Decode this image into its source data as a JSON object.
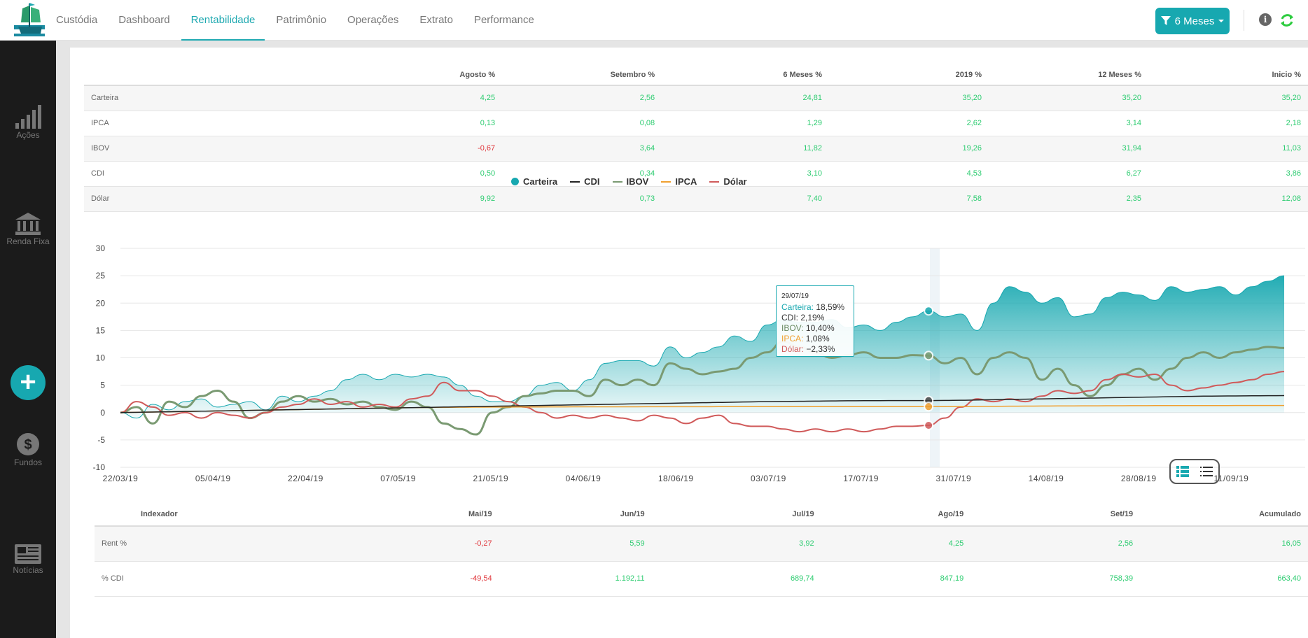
{
  "nav": {
    "items": [
      "Custódia",
      "Dashboard",
      "Rentabilidade",
      "Patrimônio",
      "Operações",
      "Extrato",
      "Performance"
    ],
    "active": "Rentabilidade"
  },
  "filter": {
    "label": "6 Meses"
  },
  "sidebar": {
    "items": [
      {
        "label": "Ações",
        "icon": "bar-chart-icon"
      },
      {
        "label": "Renda Fixa",
        "icon": "bank-icon"
      },
      {
        "label": "Fundos",
        "icon": "money-bag-icon"
      },
      {
        "label": "Notícias",
        "icon": "newspaper-icon"
      }
    ],
    "add_label": "+"
  },
  "returns_table": {
    "headers": [
      "",
      "Agosto %",
      "Setembro %",
      "6 Meses %",
      "2019 %",
      "12 Meses %",
      "Inicio %"
    ],
    "rows": [
      {
        "label": "Carteira",
        "values": [
          "4,25",
          "2,56",
          "24,81",
          "35,20",
          "35,20",
          "35,20"
        ]
      },
      {
        "label": "IPCA",
        "values": [
          "0,13",
          "0,08",
          "1,29",
          "2,62",
          "3,14",
          "2,18"
        ]
      },
      {
        "label": "IBOV",
        "values": [
          "-0,67",
          "3,64",
          "11,82",
          "19,26",
          "31,94",
          "11,03"
        ]
      },
      {
        "label": "CDI",
        "values": [
          "0,50",
          "0,34",
          "3,10",
          "4,53",
          "6,27",
          "3,86"
        ]
      },
      {
        "label": "Dólar",
        "values": [
          "9,92",
          "0,73",
          "7,40",
          "7,58",
          "2,35",
          "12,08"
        ]
      }
    ]
  },
  "colors": {
    "carteira": "#17a8b0",
    "cdi": "#222222",
    "ibov": "#7a9a72",
    "ipca": "#f0a030",
    "dolar": "#d05a5a",
    "positive": "#2ecc71",
    "negative": "#e0363b"
  },
  "chart_data": {
    "type": "area",
    "x_labels": [
      "22/03/19",
      "05/04/19",
      "22/04/19",
      "07/05/19",
      "21/05/19",
      "04/06/19",
      "18/06/19",
      "03/07/19",
      "17/07/19",
      "31/07/19",
      "14/08/19",
      "28/08/19",
      "11/09/19"
    ],
    "ylim": [
      -10,
      30
    ],
    "yticks": [
      30,
      25,
      20,
      15,
      10,
      5,
      0,
      -5,
      -10
    ],
    "grid": true,
    "legend_position": "top-center",
    "series": [
      {
        "name": "Carteira",
        "type": "area",
        "values": [
          0,
          -1,
          1.5,
          0.5,
          2,
          2.5,
          1,
          1.5,
          2,
          0.5,
          3,
          2,
          3,
          4,
          6,
          7,
          6,
          7,
          6.5,
          7,
          6.5,
          5,
          3,
          2,
          2,
          3,
          5,
          5.5,
          4,
          6,
          9,
          9.5,
          9.5,
          8.5,
          12,
          10,
          11,
          12,
          14,
          13,
          16,
          17,
          16.5,
          16.5,
          17,
          15.5,
          16,
          15,
          16.5,
          17.5,
          18.6,
          17.5,
          18,
          15,
          20,
          23,
          22,
          20,
          21,
          17.5,
          18,
          21,
          22,
          21.5,
          20.5,
          23,
          22,
          22.5,
          23,
          21.5,
          23,
          24,
          25
        ]
      },
      {
        "name": "CDI",
        "type": "line",
        "values": [
          0,
          0.05,
          0.1,
          0.15,
          0.2,
          0.25,
          0.3,
          0.35,
          0.4,
          0.45,
          0.5,
          0.55,
          0.6,
          0.65,
          0.7,
          0.75,
          0.8,
          0.85,
          0.9,
          0.95,
          1.0,
          1.05,
          1.1,
          1.15,
          1.2,
          1.25,
          1.3,
          1.35,
          1.4,
          1.45,
          1.5,
          1.55,
          1.6,
          1.65,
          1.7,
          1.75,
          1.8,
          1.85,
          1.9,
          1.95,
          2.0,
          2.03,
          2.06,
          2.09,
          2.12,
          2.15,
          2.17,
          2.18,
          2.19,
          2.19,
          2.19,
          2.22,
          2.25,
          2.3,
          2.35,
          2.4,
          2.45,
          2.5,
          2.55,
          2.6,
          2.65,
          2.7,
          2.75,
          2.8,
          2.85,
          2.9,
          2.95,
          3.0,
          3.02,
          3.04,
          3.06,
          3.08,
          3.1
        ]
      },
      {
        "name": "IBOV",
        "type": "line",
        "values": [
          0,
          1,
          -2,
          2,
          1,
          3,
          4,
          2,
          -1,
          0,
          2,
          3,
          2,
          2.5,
          1.5,
          2,
          1,
          0.5,
          2,
          1,
          -2,
          -3,
          -4,
          0,
          1,
          3,
          3.5,
          4,
          4,
          3,
          6,
          5,
          6,
          5,
          9,
          8,
          7,
          7.5,
          8,
          10,
          11,
          13,
          12,
          11,
          10,
          10.5,
          11,
          10,
          10,
          10.5,
          10.4,
          9,
          10,
          7,
          10,
          11,
          10,
          6,
          8,
          5,
          3,
          5,
          7,
          8,
          6,
          8,
          10,
          11,
          10,
          11,
          11.5,
          12,
          11.8
        ]
      },
      {
        "name": "IPCA",
        "type": "line",
        "values": [
          0,
          0.05,
          0.1,
          0.15,
          0.2,
          0.25,
          0.3,
          0.35,
          0.4,
          0.45,
          0.5,
          0.55,
          0.6,
          0.65,
          0.7,
          0.75,
          0.8,
          0.85,
          0.9,
          0.93,
          0.95,
          0.97,
          0.99,
          1.0,
          1.01,
          1.02,
          1.03,
          1.04,
          1.05,
          1.05,
          1.06,
          1.06,
          1.06,
          1.07,
          1.07,
          1.07,
          1.07,
          1.08,
          1.08,
          1.08,
          1.08,
          1.08,
          1.08,
          1.08,
          1.08,
          1.08,
          1.08,
          1.08,
          1.08,
          1.08,
          1.08,
          1.09,
          1.1,
          1.12,
          1.14,
          1.16,
          1.18,
          1.2,
          1.21,
          1.22,
          1.23,
          1.24,
          1.25,
          1.26,
          1.27,
          1.27,
          1.28,
          1.28,
          1.28,
          1.29,
          1.29,
          1.29,
          1.29
        ]
      },
      {
        "name": "Dólar",
        "type": "line",
        "values": [
          0,
          2,
          1,
          -0.5,
          0,
          -1,
          0,
          -0.5,
          -1,
          0,
          1,
          1.5,
          2.5,
          1.5,
          2,
          1,
          1.5,
          1,
          2.5,
          3,
          5.5,
          4,
          4,
          3,
          2,
          1,
          0,
          -1,
          -0.5,
          -1,
          -0.5,
          -1,
          -1.5,
          -0.5,
          -1,
          -2,
          -1,
          -0.5,
          -2,
          -2.5,
          -2.5,
          -3,
          -3.5,
          -3,
          -3.5,
          -3,
          -3.5,
          -3,
          -2.5,
          -2.5,
          -2.33,
          -1,
          1,
          2.5,
          2,
          2.5,
          2,
          3,
          4,
          3.5,
          4,
          6,
          7,
          6.5,
          7,
          5,
          4,
          4.5,
          5,
          5.5,
          6,
          7,
          7.5
        ]
      }
    ]
  },
  "tooltip": {
    "date": "29/07/19",
    "lines": [
      {
        "label": "Carteira:",
        "value": "18,59%"
      },
      {
        "label": "CDI:",
        "value": "2,19%"
      },
      {
        "label": "IBOV:",
        "value": "10,40%"
      },
      {
        "label": "IPCA:",
        "value": "1,08%"
      },
      {
        "label": "Dólar:",
        "value": "−2,33%"
      }
    ]
  },
  "view_toggle": {
    "icons": [
      "detail-list-icon",
      "simple-list-icon"
    ]
  },
  "monthly_table": {
    "headers": [
      "Indexador",
      "Mai/19",
      "Jun/19",
      "Jul/19",
      "Ago/19",
      "Set/19",
      "Acumulado"
    ],
    "rows": [
      {
        "label": "Rent %",
        "values": [
          "-0,27",
          "5,59",
          "3,92",
          "4,25",
          "2,56",
          "16,05"
        ]
      },
      {
        "label": "% CDI",
        "values": [
          "-49,54",
          "1.192,11",
          "689,74",
          "847,19",
          "758,39",
          "663,40"
        ]
      }
    ]
  }
}
